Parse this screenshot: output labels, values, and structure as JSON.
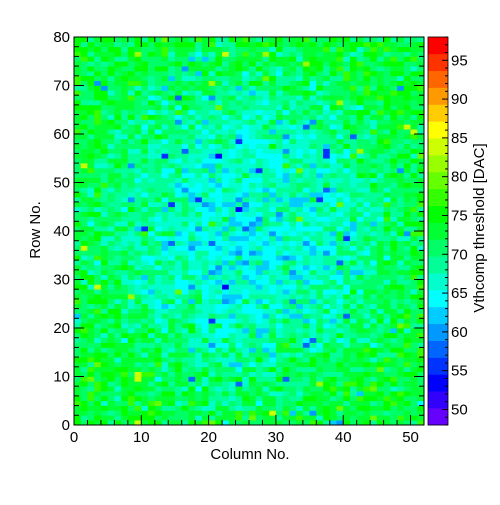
{
  "chart_data": {
    "type": "heatmap",
    "title": "",
    "xlabel": "Column No.",
    "ylabel": "Row No.",
    "zlabel": "Vthcomp threshold [DAC]",
    "xlim": [
      0,
      52
    ],
    "ylim": [
      0,
      80
    ],
    "zlim": [
      48,
      98
    ],
    "n_columns": 52,
    "n_rows": 80,
    "x_ticks": [
      0,
      10,
      20,
      30,
      40,
      50
    ],
    "x_tick_labels": [
      "0",
      "10",
      "20",
      "30",
      "40",
      "50"
    ],
    "y_ticks": [
      0,
      10,
      20,
      30,
      40,
      50,
      60,
      70,
      80
    ],
    "y_tick_labels": [
      "0",
      "10",
      "20",
      "30",
      "40",
      "50",
      "60",
      "70",
      "80"
    ],
    "z_ticks": [
      50,
      55,
      60,
      65,
      70,
      75,
      80,
      85,
      90,
      95
    ],
    "z_tick_labels": [
      "50",
      "55",
      "60",
      "65",
      "70",
      "75",
      "80",
      "85",
      "90",
      "95"
    ],
    "color_palette": [
      "#6600ff",
      "#3300ff",
      "#0000ff",
      "#0033ff",
      "#0066ff",
      "#0099ff",
      "#00ccff",
      "#00ffff",
      "#00ffcc",
      "#00ff99",
      "#00ff66",
      "#00ff33",
      "#00ff00",
      "#33ff00",
      "#66ff00",
      "#99ff00",
      "#ccff00",
      "#ffff00",
      "#ffcc00",
      "#ff9900",
      "#ff6600",
      "#ff3300",
      "#ff0000"
    ],
    "value_model": {
      "description": "per-pixel threshold map; mean value depends on position",
      "center_value": 64.5,
      "edge_value": 73,
      "noise_spread": 5,
      "seed": 7
    }
  }
}
